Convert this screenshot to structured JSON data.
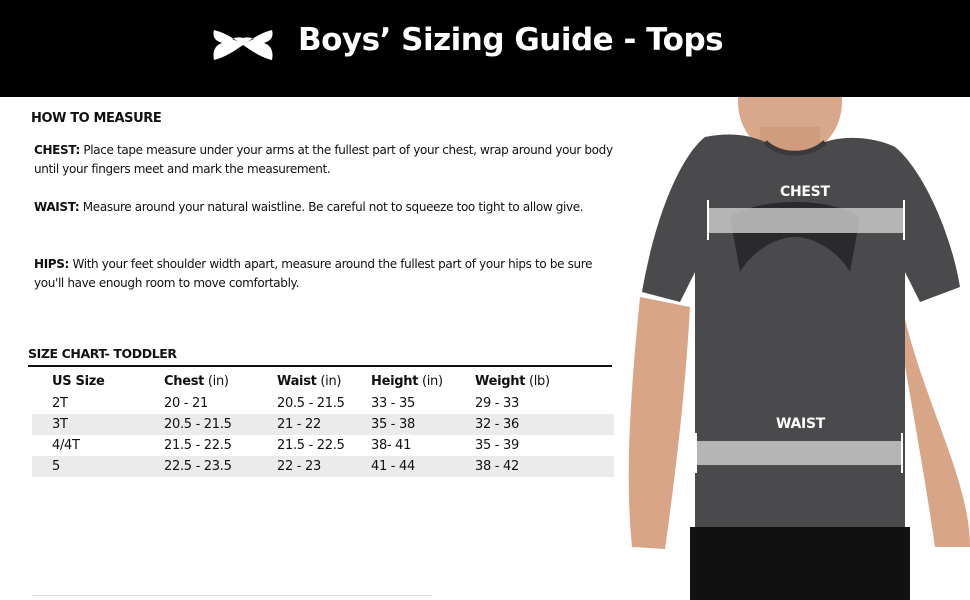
{
  "header": {
    "title": "Boys’ Sizing Guide - Tops",
    "logo": "under-armour-logo",
    "background": "#000000"
  },
  "how_to_measure": {
    "heading": "HOW TO MEASURE",
    "items": [
      {
        "label": "CHEST:",
        "text": " Place tape measure under your arms at the fullest part of your chest, wrap around your body until your fingers meet and mark the measurement."
      },
      {
        "label": "WAIST:",
        "text": " Measure around your natural waistline. Be careful not to squeeze too tight to allow give."
      },
      {
        "label": "HIPS:",
        "text": " With your feet shoulder width apart, measure around the fullest part of your hips to be sure you'll have enough room to move comfortably."
      }
    ]
  },
  "size_chart": {
    "title": "SIZE CHART- TODDLER",
    "columns": [
      {
        "name": "US Size",
        "unit": ""
      },
      {
        "name": "Chest",
        "unit": " (in)"
      },
      {
        "name": "Waist",
        "unit": " (in)"
      },
      {
        "name": "Height",
        "unit": " (in)"
      },
      {
        "name": "Weight",
        "unit": " (lb)"
      }
    ],
    "rows": [
      [
        "2T",
        "20 - 21",
        "20.5 - 21.5",
        "33 - 35",
        "29 - 33"
      ],
      [
        "3T",
        "20.5 - 21.5",
        "21 - 22",
        "35 - 38",
        "32 - 36"
      ],
      [
        "4/4T",
        "21.5 - 22.5",
        "21.5 - 22.5",
        "38- 41",
        "35 - 39"
      ],
      [
        "5",
        "22.5 - 23.5",
        "22 - 23",
        "41 - 44",
        "38 - 42"
      ]
    ]
  },
  "photo": {
    "chest_label": "CHEST",
    "waist_label": "WAIST"
  }
}
